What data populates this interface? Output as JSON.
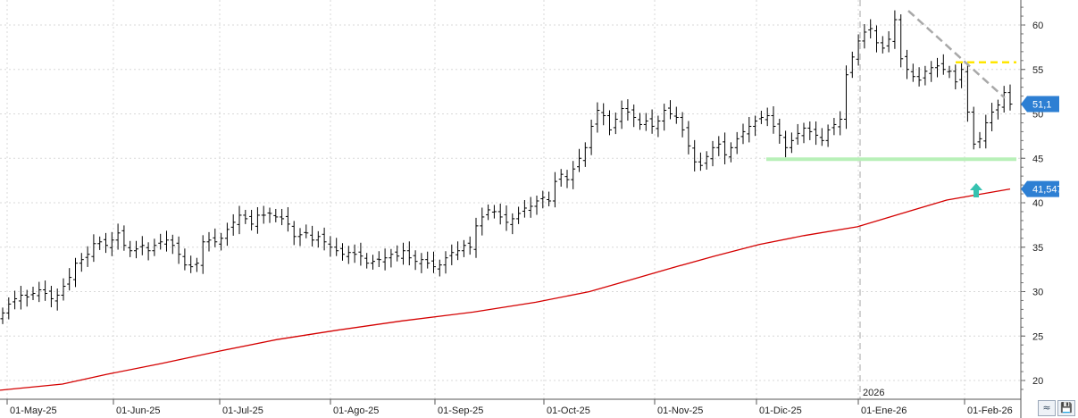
{
  "chart_data": {
    "type": "ohlc",
    "x_axis": {
      "labels": [
        "01-May-25",
        "01-Jun-25",
        "01-Jul-25",
        "01-Ago-25",
        "01-Sep-25",
        "01-Oct-25",
        "01-Nov-25",
        "01-Dic-25",
        "01-Ene-26",
        "01-Feb-26"
      ],
      "year_marker": "2026"
    },
    "y_axis": {
      "ticks": [
        "60",
        "55",
        "50",
        "45",
        "40",
        "35",
        "30",
        "25",
        "20"
      ],
      "range": [
        18,
        64
      ],
      "position": "right"
    },
    "grid": true,
    "colors": {
      "bars": "#000000",
      "moving_average": "#d40000",
      "support": "#b8f0b8",
      "resistance": "#ffe600",
      "trendline": "#a8a8a8",
      "price_tag": "#2d7fd3",
      "arrow": "#36c2b0"
    },
    "ohlc_close_series": [
      27.6,
      28.6,
      29.2,
      29.6,
      29.4,
      29.8,
      30.2,
      29.8,
      29.2,
      29.6,
      30.6,
      31.6,
      33.2,
      33.6,
      34.2,
      35.4,
      35.6,
      35.2,
      35.8,
      36.6,
      35.2,
      34.6,
      34.8,
      35.2,
      34.6,
      35.2,
      35.6,
      35.8,
      35.2,
      34.2,
      33.0,
      32.8,
      33.2,
      35.6,
      35.8,
      35.6,
      36.0,
      37.0,
      37.8,
      38.6,
      38.2,
      37.6,
      38.6,
      38.6,
      38.8,
      38.4,
      38.2,
      37.6,
      36.2,
      36.4,
      36.6,
      35.8,
      36.2,
      35.6,
      35.0,
      34.6,
      34.2,
      34.4,
      34.2,
      34.0,
      33.2,
      33.4,
      33.6,
      33.8,
      34.2,
      34.0,
      34.6,
      33.8,
      33.4,
      33.6,
      33.2,
      32.8,
      33.0,
      33.8,
      34.4,
      34.6,
      35.2,
      35.0,
      37.4,
      38.4,
      39.2,
      39.0,
      38.4,
      37.8,
      38.2,
      38.8,
      39.4,
      39.6,
      40.2,
      40.6,
      40.2,
      42.4,
      43.2,
      42.6,
      43.8,
      45.0,
      46.2,
      48.6,
      50.4,
      49.8,
      48.2,
      49.4,
      50.6,
      50.2,
      49.6,
      48.8,
      49.2,
      48.6,
      49.2,
      50.4,
      50.0,
      49.6,
      48.2,
      46.4,
      44.6,
      44.2,
      45.2,
      46.2,
      46.6,
      45.4,
      46.2,
      47.2,
      48.0,
      48.6,
      49.2,
      49.6,
      49.8,
      48.6,
      47.6,
      46.2,
      47.0,
      47.8,
      48.4,
      48.0,
      47.6,
      47.0,
      48.2,
      48.8,
      49.4,
      54.4,
      56.4,
      58.2,
      59.2,
      59.6,
      58.0,
      57.4,
      58.4,
      60.6,
      56.2,
      55.0,
      54.2,
      53.8,
      54.8,
      55.2,
      55.4,
      55.0,
      54.8,
      53.6,
      55.0,
      50.2,
      46.6,
      47.2,
      49.0,
      50.2,
      51.0,
      52.4,
      51.1
    ],
    "moving_average": {
      "last_value": "41,547",
      "points": [
        [
          0,
          18.9
        ],
        [
          70,
          19.6
        ],
        [
          120,
          20.7
        ],
        [
          180,
          21.9
        ],
        [
          245,
          23.3
        ],
        [
          310,
          24.6
        ],
        [
          380,
          25.7
        ],
        [
          450,
          26.7
        ],
        [
          530,
          27.7
        ],
        [
          600,
          28.8
        ],
        [
          660,
          30.0
        ],
        [
          705,
          31.3
        ],
        [
          750,
          32.6
        ],
        [
          800,
          34.0
        ],
        [
          850,
          35.3
        ],
        [
          900,
          36.3
        ],
        [
          960,
          37.3
        ],
        [
          1010,
          38.8
        ],
        [
          1060,
          40.3
        ],
        [
          1100,
          41.0
        ],
        [
          1131,
          41.547
        ]
      ]
    },
    "support_level": {
      "value": 44.9,
      "x_start": 858,
      "x_end": 1138
    },
    "resistance_level": {
      "value": 55.8,
      "x_start": 1070,
      "x_end": 1138
    },
    "trendline": {
      "from": [
        1017,
        61.6
      ],
      "to": [
        1125,
        51.8
      ]
    },
    "last_price_label": "51,1",
    "ma_price_label": "41,547",
    "arrow_at": [
      1093,
      40.6
    ]
  },
  "controls": {
    "scale_button_label": "≈",
    "save_button_label": "💾"
  }
}
